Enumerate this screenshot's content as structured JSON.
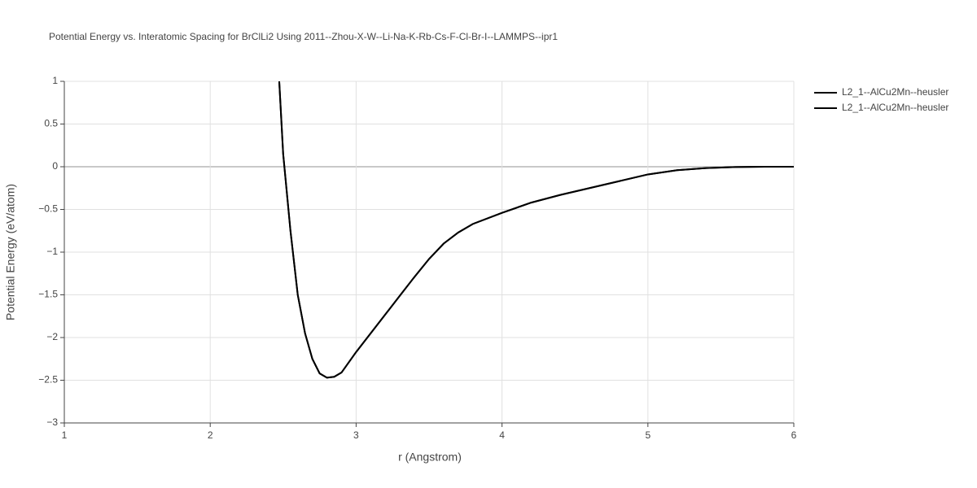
{
  "chart_data": {
    "type": "line",
    "title": "Potential Energy vs. Interatomic Spacing for BrClLi2 Using 2011--Zhou-X-W--Li-Na-K-Rb-Cs-F-Cl-Br-I--LAMMPS--ipr1",
    "x_label": "r (Angstrom)",
    "y_label": "Potential Energy (eV/atom)",
    "x": [
      2.473,
      2.5,
      2.55,
      2.6,
      2.65,
      2.7,
      2.75,
      2.8,
      2.85,
      2.9,
      3.0,
      3.1,
      3.2,
      3.3,
      3.4,
      3.5,
      3.6,
      3.7,
      3.8,
      4.0,
      4.2,
      4.4,
      4.6,
      4.8,
      5.0,
      5.2,
      5.4,
      5.6,
      5.8,
      6.0
    ],
    "series": [
      {
        "name": "L2_1--AlCu2Mn--heusler",
        "color": "#000000",
        "values": [
          1.0,
          0.15,
          -0.75,
          -1.5,
          -1.95,
          -2.25,
          -2.42,
          -2.47,
          -2.46,
          -2.41,
          -2.17,
          -1.95,
          -1.73,
          -1.51,
          -1.29,
          -1.08,
          -0.9,
          -0.77,
          -0.67,
          -0.54,
          -0.42,
          -0.33,
          -0.25,
          -0.17,
          -0.09,
          -0.04,
          -0.015,
          -0.004,
          0,
          0
        ]
      },
      {
        "name": "L2_1--AlCu2Mn--heusler",
        "color": "#000000",
        "values": [
          1.0,
          0.15,
          -0.75,
          -1.5,
          -1.95,
          -2.25,
          -2.42,
          -2.47,
          -2.46,
          -2.41,
          -2.17,
          -1.95,
          -1.73,
          -1.51,
          -1.29,
          -1.08,
          -0.9,
          -0.77,
          -0.67,
          -0.54,
          -0.42,
          -0.33,
          -0.25,
          -0.17,
          -0.09,
          -0.04,
          -0.015,
          -0.004,
          0,
          0
        ]
      }
    ],
    "xlim": [
      1,
      6
    ],
    "xticks": [
      1,
      2,
      3,
      4,
      5,
      6
    ],
    "ylim": [
      -3,
      1
    ],
    "yticks": [
      {
        "value": -3,
        "label": "−3"
      },
      {
        "value": -2.5,
        "label": "−2.5"
      },
      {
        "value": -2,
        "label": "−2"
      },
      {
        "value": -1.5,
        "label": "−1.5"
      },
      {
        "value": -1,
        "label": "−1"
      },
      {
        "value": -0.5,
        "label": "−0.5"
      },
      0,
      0.5,
      1
    ],
    "grid": true,
    "legend": "top-right"
  }
}
